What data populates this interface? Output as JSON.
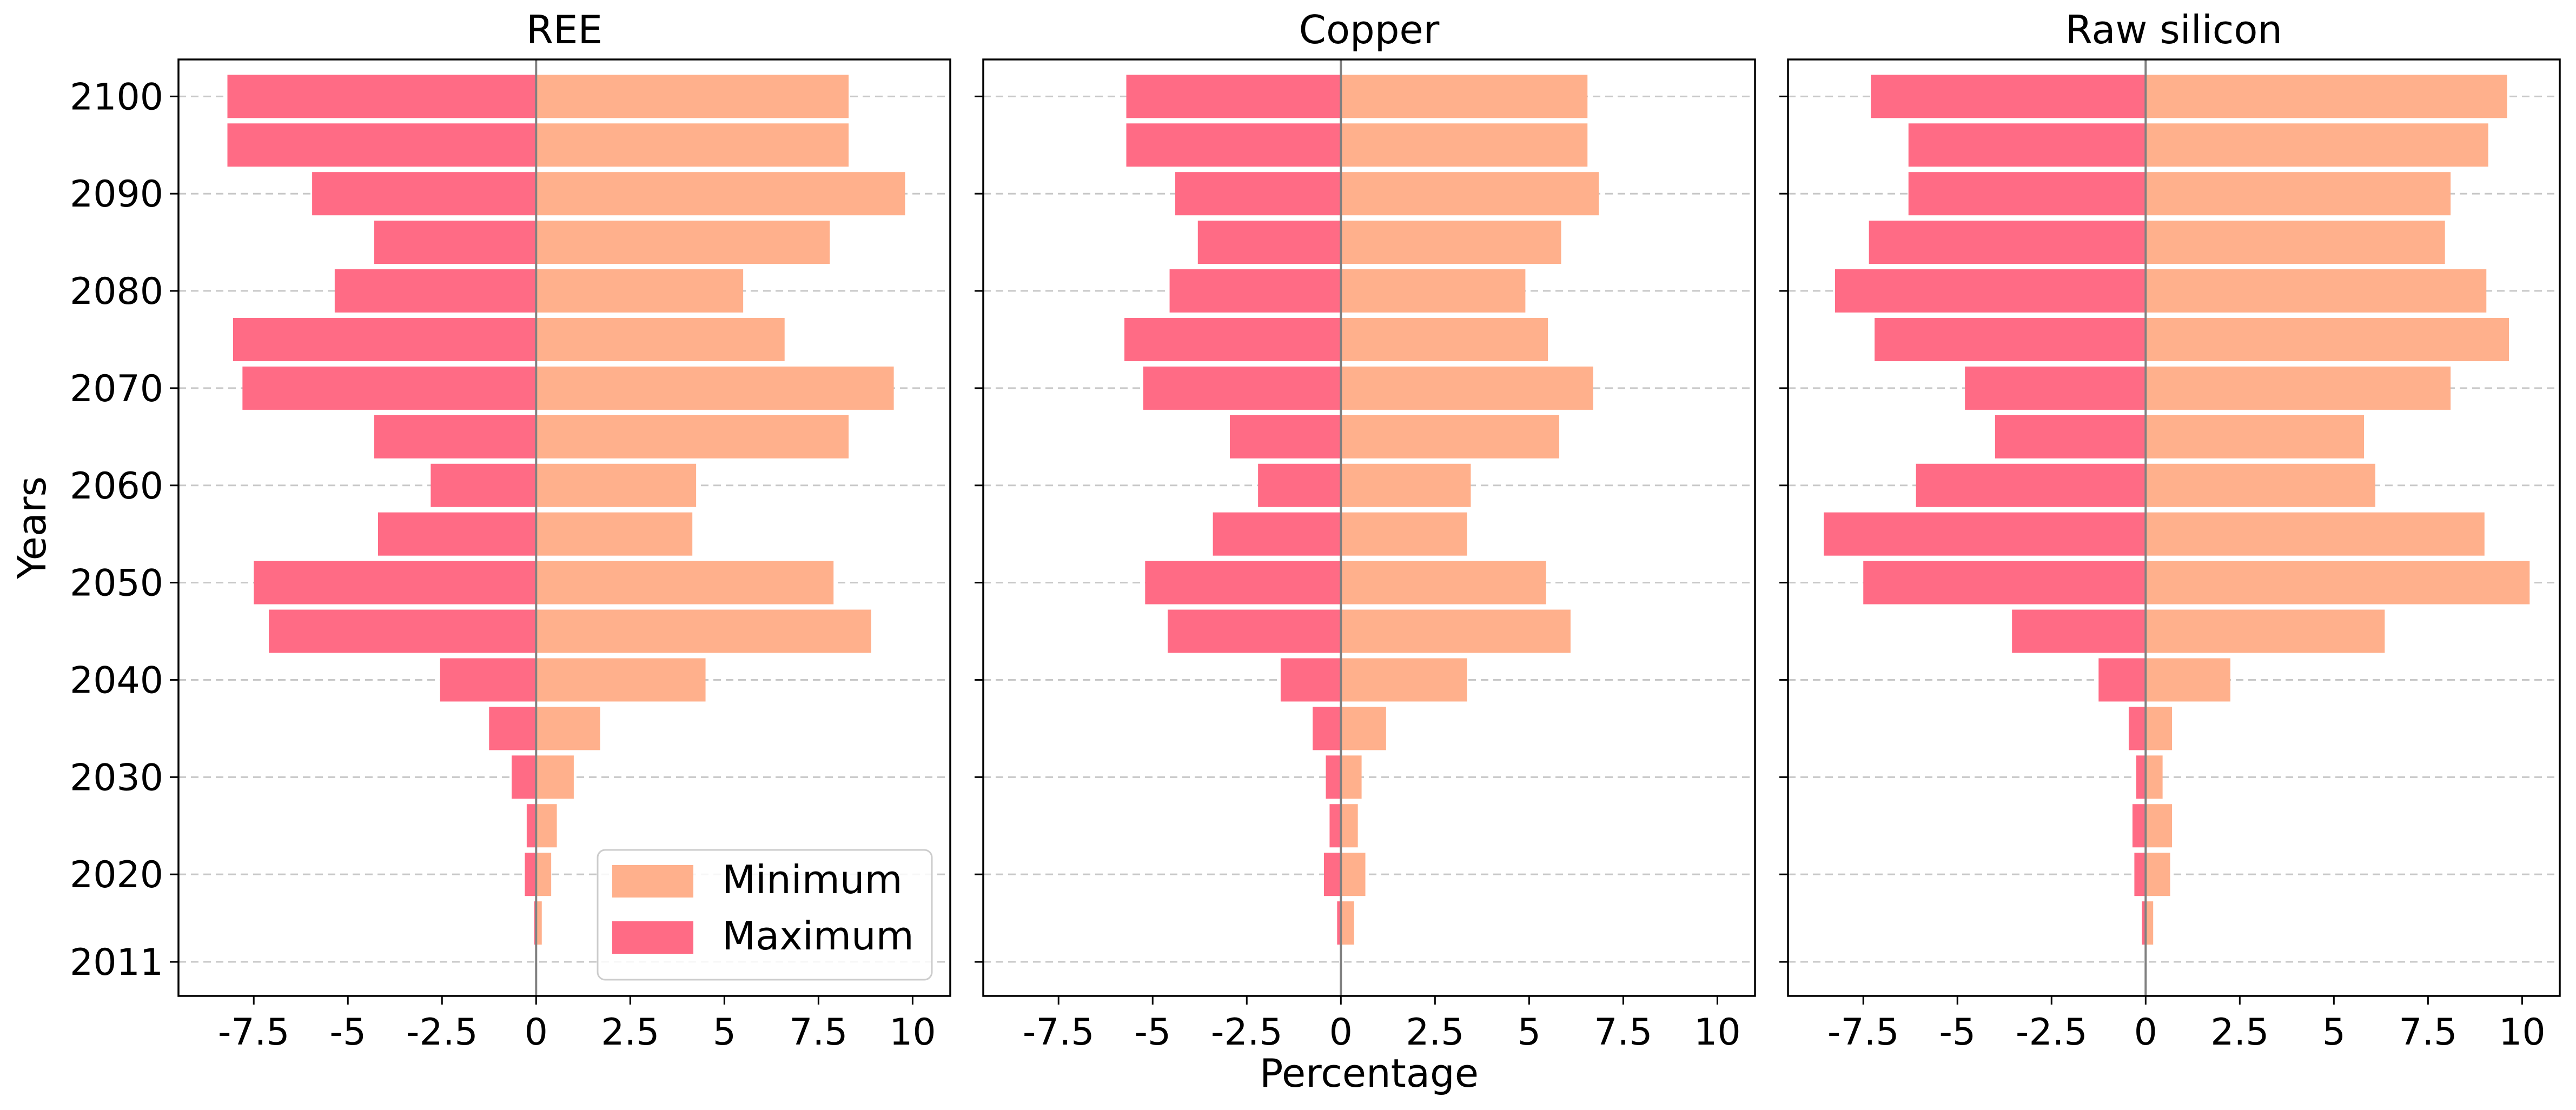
{
  "chart_data": {
    "type": "bar",
    "orientation": "horizontal",
    "ylabel": "Years",
    "xlabel": "Percentage",
    "y_tick_labels": [
      "2011",
      "2020",
      "2030",
      "2040",
      "2050",
      "2060",
      "2070",
      "2080",
      "2090",
      "2100"
    ],
    "x_tick_labels": [
      "-7.5",
      "-5",
      "-2.5",
      "0",
      "2.5",
      "5",
      "7.5",
      "10"
    ],
    "xlim": [
      -9.5,
      11
    ],
    "grid": "horizontal dashed",
    "legend": {
      "placement": "lower-right of first panel",
      "entries": [
        {
          "label": "Minimum",
          "color": "#FFB08C"
        },
        {
          "label": "Maximum",
          "color": "#FF6B85"
        }
      ]
    },
    "colors": {
      "minimum": "#FFB08C",
      "maximum": "#FF6B85",
      "zero_line": "#808080",
      "grid": "#c8c8c8"
    },
    "years": [
      2011,
      2015,
      2020,
      2025,
      2030,
      2035,
      2040,
      2045,
      2050,
      2055,
      2060,
      2065,
      2070,
      2075,
      2080,
      2085,
      2090,
      2095,
      2100
    ],
    "panels": [
      {
        "title": "REE",
        "series": [
          {
            "name": "Minimum",
            "values": [
              0.02,
              0.15,
              0.4,
              0.55,
              1.0,
              1.7,
              4.5,
              8.9,
              7.9,
              4.15,
              4.25,
              8.3,
              9.5,
              6.6,
              5.5,
              7.8,
              9.8,
              8.3,
              8.3
            ]
          },
          {
            "name": "Maximum",
            "values": [
              -0.02,
              -0.05,
              -0.3,
              -0.25,
              -0.65,
              -1.25,
              -2.55,
              -7.1,
              -7.5,
              -4.2,
              -2.8,
              -4.3,
              -7.8,
              -8.05,
              -5.35,
              -4.3,
              -5.95,
              -8.2,
              -8.2
            ]
          }
        ]
      },
      {
        "title": "Copper",
        "series": [
          {
            "name": "Minimum",
            "values": [
              0.02,
              0.35,
              0.65,
              0.45,
              0.55,
              1.2,
              3.35,
              6.1,
              5.45,
              3.35,
              3.45,
              5.8,
              6.7,
              5.5,
              4.9,
              5.85,
              6.85,
              6.55,
              6.55
            ]
          },
          {
            "name": "Maximum",
            "values": [
              -0.02,
              -0.1,
              -0.45,
              -0.3,
              -0.4,
              -0.75,
              -1.6,
              -4.6,
              -5.2,
              -3.4,
              -2.2,
              -2.95,
              -5.25,
              -5.75,
              -4.55,
              -3.8,
              -4.4,
              -5.7,
              -5.7
            ]
          }
        ]
      },
      {
        "title": "Raw silicon",
        "series": [
          {
            "name": "Minimum",
            "values": [
              0.02,
              0.2,
              0.65,
              0.7,
              0.45,
              0.7,
              2.25,
              6.35,
              10.2,
              9.0,
              6.1,
              5.8,
              8.1,
              9.65,
              9.05,
              7.95,
              8.1,
              9.1,
              9.6
            ]
          },
          {
            "name": "Maximum",
            "values": [
              -0.02,
              -0.1,
              -0.3,
              -0.35,
              -0.25,
              -0.45,
              -1.25,
              -3.55,
              -7.5,
              -8.55,
              -6.1,
              -4.0,
              -4.8,
              -7.2,
              -8.25,
              -7.35,
              -6.3,
              -6.3,
              -7.3
            ]
          }
        ]
      }
    ]
  }
}
